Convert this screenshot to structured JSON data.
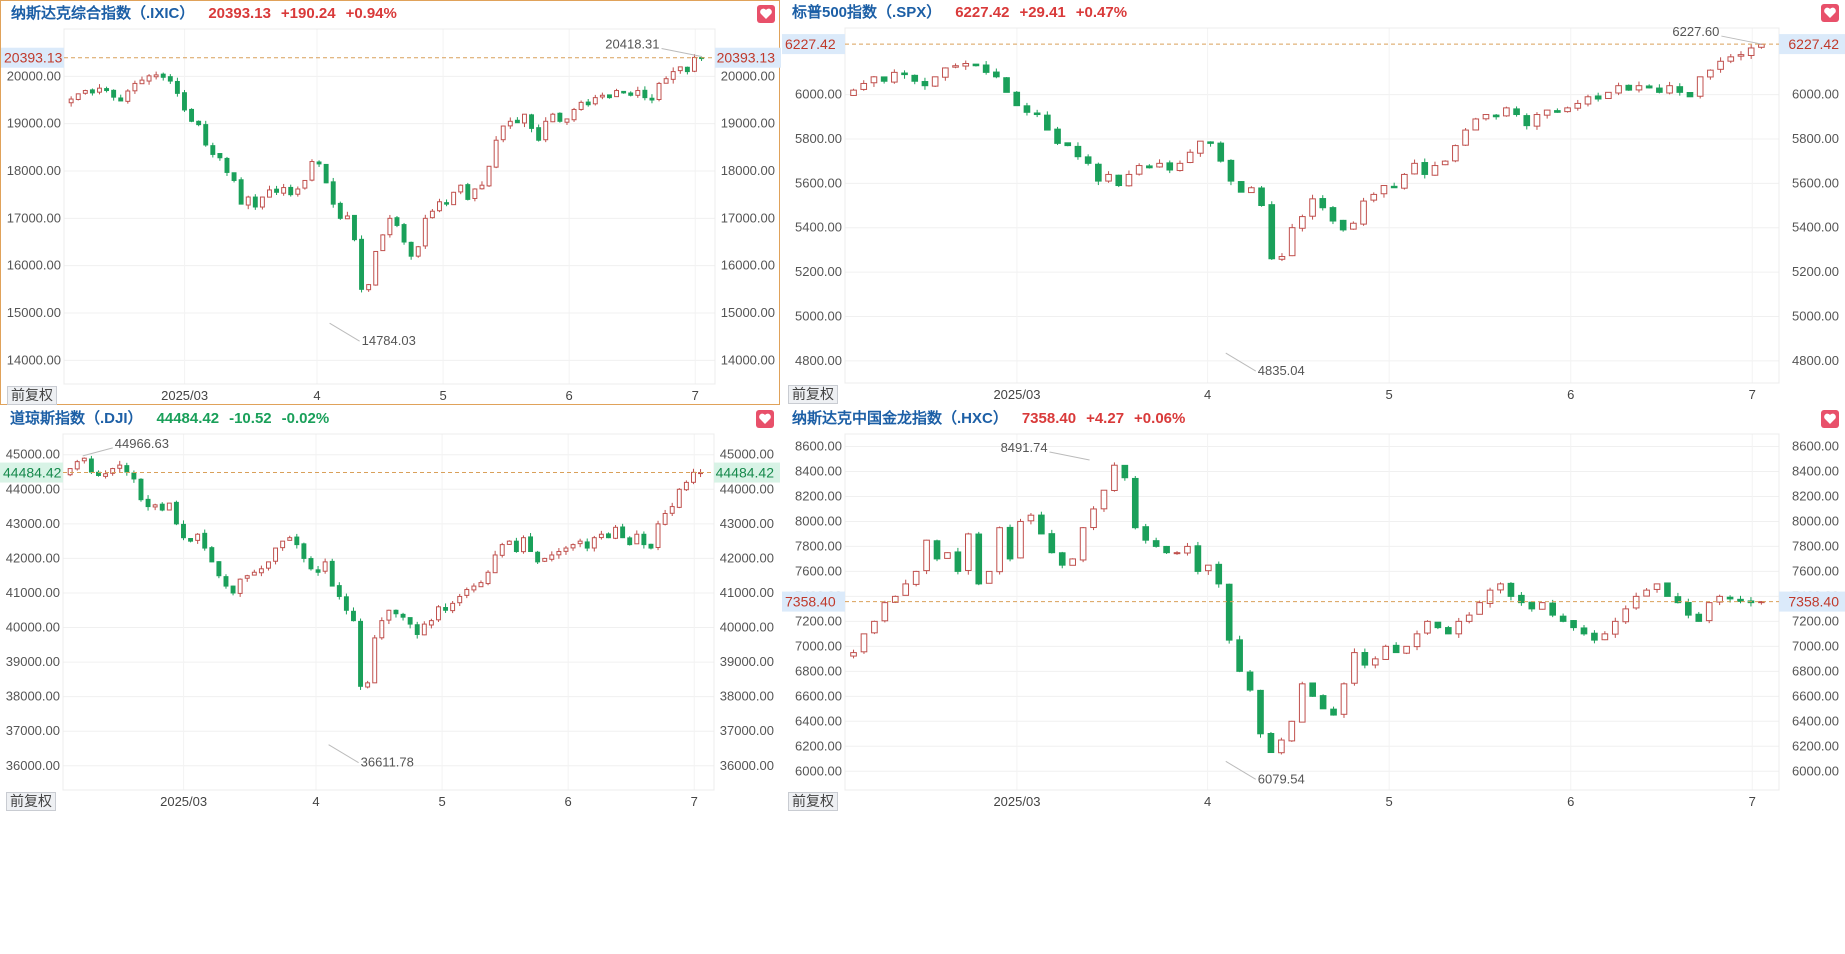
{
  "ui": {
    "adjust_label": "前复权",
    "favorite_icon": "heart-icon",
    "up_color": "#d93a3a",
    "down_color": "#1aa05a",
    "accent": "#e0a25a"
  },
  "panels": [
    {
      "id": "ixic",
      "title": "纳斯达克综合指数（.IXIC）",
      "value": "20393.13",
      "change": "+190.24",
      "pct": "+0.94%",
      "dir": "up",
      "active": true,
      "chart_data": {
        "type": "candlestick",
        "ylim": [
          13500,
          21000
        ],
        "yticks": [
          14000,
          15000,
          16000,
          17000,
          18000,
          19000,
          20000
        ],
        "ytick_labels": [
          "14000.00",
          "15000.00",
          "16000.00",
          "17000.00",
          "18000.00",
          "19000.00",
          "20000.00"
        ],
        "xtick_labels": [
          "2025/03",
          "4",
          "5",
          "6",
          "7"
        ],
        "xtick_at": [
          18,
          39,
          59,
          79,
          99
        ],
        "current": 20393.13,
        "current_label": "20393.13",
        "high": {
          "label": "20418.31",
          "index": 100,
          "value": 20418.31
        },
        "low": {
          "label": "14784.03",
          "index": 41,
          "value": 14784.03
        },
        "closes": [
          19520,
          19630,
          19700,
          19650,
          19750,
          19700,
          19560,
          19480,
          19690,
          19850,
          19920,
          20010,
          20030,
          19980,
          19900,
          19640,
          19290,
          19050,
          18980,
          18550,
          18350,
          18280,
          17970,
          17800,
          17300,
          17450,
          17240,
          17450,
          17600,
          17550,
          17650,
          17500,
          17620,
          17800,
          18200,
          18150,
          17750,
          17300,
          17000,
          17050,
          16550,
          15500,
          15600,
          16300,
          16650,
          17000,
          16850,
          16500,
          16200,
          16400,
          17000,
          17150,
          17350,
          17300,
          17550,
          17700,
          17400,
          17620,
          17700,
          18100,
          18650,
          18950,
          19050,
          19020,
          19200,
          18900,
          18650,
          19050,
          19200,
          19050,
          19100,
          19300,
          19450,
          19400,
          19550,
          19600,
          19550,
          19700,
          19650,
          19600,
          19700,
          19550,
          19500,
          19850,
          19950,
          20100,
          20200,
          20100,
          20400,
          20393
        ]
      }
    },
    {
      "id": "spx",
      "title": "标普500指数（.SPX）",
      "value": "6227.42",
      "change": "+29.41",
      "pct": "+0.47%",
      "dir": "up",
      "active": false,
      "chart_data": {
        "type": "candlestick",
        "ylim": [
          4700,
          6300
        ],
        "yticks": [
          4800,
          5000,
          5200,
          5400,
          5600,
          5800,
          6000
        ],
        "ytick_labels": [
          "4800.00",
          "5000.00",
          "5200.00",
          "5400.00",
          "5600.00",
          "5800.00",
          "6000.00"
        ],
        "xtick_labels": [
          "2025/03",
          "4",
          "5",
          "6",
          "7"
        ],
        "xtick_at": [
          18,
          39,
          59,
          79,
          99
        ],
        "current": 6227.42,
        "current_label": "6227.42",
        "high": {
          "label": "6227.60",
          "index": 100,
          "value": 6227.6
        },
        "low": {
          "label": "4835.04",
          "index": 41,
          "value": 4835.04
        },
        "closes": [
          6020,
          6050,
          6080,
          6060,
          6100,
          6090,
          6060,
          6040,
          6080,
          6120,
          6130,
          6140,
          6130,
          6100,
          6080,
          6010,
          5950,
          5920,
          5910,
          5840,
          5780,
          5770,
          5720,
          5690,
          5610,
          5640,
          5590,
          5640,
          5680,
          5670,
          5690,
          5660,
          5690,
          5740,
          5790,
          5780,
          5700,
          5610,
          5560,
          5580,
          5500,
          5260,
          5270,
          5400,
          5450,
          5530,
          5490,
          5430,
          5390,
          5420,
          5520,
          5550,
          5590,
          5580,
          5640,
          5690,
          5640,
          5680,
          5700,
          5770,
          5840,
          5890,
          5910,
          5900,
          5940,
          5910,
          5860,
          5910,
          5930,
          5920,
          5940,
          5960,
          5990,
          5980,
          6010,
          6040,
          6020,
          6040,
          6030,
          6010,
          6040,
          6010,
          5990,
          6080,
          6110,
          6150,
          6170,
          6180,
          6210,
          6227
        ]
      }
    },
    {
      "id": "dji",
      "title": "道琼斯指数（.DJI）",
      "value": "44484.42",
      "change": "-10.52",
      "pct": "-0.02%",
      "dir": "down",
      "active": false,
      "chart_data": {
        "type": "candlestick",
        "ylim": [
          35300,
          45600
        ],
        "yticks": [
          36000,
          37000,
          38000,
          39000,
          40000,
          41000,
          42000,
          43000,
          44000,
          45000
        ],
        "ytick_labels": [
          "36000.00",
          "37000.00",
          "38000.00",
          "39000.00",
          "40000.00",
          "41000.00",
          "42000.00",
          "43000.00",
          "44000.00",
          "45000.00"
        ],
        "xtick_labels": [
          "2025/03",
          "4",
          "5",
          "6",
          "7"
        ],
        "xtick_at": [
          18,
          39,
          59,
          79,
          99
        ],
        "current": 44484.42,
        "current_label": "44484.42",
        "high": {
          "label": "44966.63",
          "index": 2,
          "value": 44966.63
        },
        "low": {
          "label": "36611.78",
          "index": 41,
          "value": 36611.78
        },
        "closes": [
          44600,
          44800,
          44900,
          44500,
          44400,
          44450,
          44600,
          44700,
          44500,
          44300,
          43700,
          43500,
          43550,
          43400,
          43600,
          43000,
          42600,
          42500,
          42700,
          42300,
          41900,
          41500,
          41200,
          41000,
          41400,
          41500,
          41600,
          41700,
          41900,
          42300,
          42500,
          42600,
          42400,
          42000,
          41700,
          41600,
          41900,
          41200,
          40900,
          40500,
          40200,
          38300,
          38400,
          39700,
          40200,
          40500,
          40400,
          40300,
          40100,
          39800,
          40100,
          40200,
          40600,
          40500,
          40700,
          40900,
          41100,
          41200,
          41300,
          41600,
          42100,
          42400,
          42500,
          42200,
          42600,
          42200,
          41900,
          42000,
          42100,
          42200,
          42300,
          42400,
          42500,
          42300,
          42600,
          42700,
          42600,
          42900,
          42600,
          42400,
          42700,
          42400,
          42300,
          43000,
          43300,
          43500,
          44000,
          44200,
          44490,
          44484
        ]
      }
    },
    {
      "id": "hxc",
      "title": "纳斯达克中国金龙指数（.HXC）",
      "value": "7358.40",
      "change": "+4.27",
      "pct": "+0.06%",
      "dir": "up",
      "active": false,
      "chart_data": {
        "type": "candlestick",
        "ylim": [
          5850,
          8700
        ],
        "yticks": [
          6000,
          6200,
          6400,
          6600,
          6800,
          7000,
          7200,
          7400,
          7600,
          7800,
          8000,
          8200,
          8400,
          8600
        ],
        "ytick_labels": [
          "6000.00",
          "6200.00",
          "6400.00",
          "6600.00",
          "6800.00",
          "7000.00",
          "7200.00",
          "7400.00",
          "7600.00",
          "7800.00",
          "8000.00",
          "8200.00",
          "8400.00",
          "8600.00"
        ],
        "xtick_labels": [
          "2025/03",
          "4",
          "5",
          "6",
          "7"
        ],
        "xtick_at": [
          18,
          39,
          59,
          79,
          99
        ],
        "current": 7358.4,
        "current_label": "7358.40",
        "high": {
          "label": "8491.74",
          "index": 26,
          "value": 8491.74
        },
        "low": {
          "label": "6079.54",
          "index": 41,
          "value": 6079.54
        },
        "closes": [
          6950,
          7100,
          7200,
          7350,
          7400,
          7500,
          7600,
          7850,
          7700,
          7750,
          7600,
          7900,
          7500,
          7600,
          7950,
          7700,
          8000,
          8050,
          7900,
          7750,
          7650,
          7700,
          7950,
          8100,
          8250,
          8450,
          8350,
          7950,
          7850,
          7800,
          7750,
          7750,
          7800,
          7600,
          7650,
          7500,
          7050,
          6800,
          6650,
          6300,
          6150,
          6250,
          6400,
          6700,
          6600,
          6500,
          6450,
          6700,
          6950,
          6850,
          6900,
          7000,
          6950,
          7000,
          7100,
          7200,
          7150,
          7100,
          7200,
          7250,
          7350,
          7450,
          7500,
          7400,
          7350,
          7300,
          7350,
          7250,
          7200,
          7150,
          7100,
          7050,
          7100,
          7200,
          7300,
          7400,
          7450,
          7500,
          7400,
          7350,
          7250,
          7200,
          7350,
          7400,
          7380,
          7360,
          7350,
          7358
        ]
      }
    }
  ]
}
